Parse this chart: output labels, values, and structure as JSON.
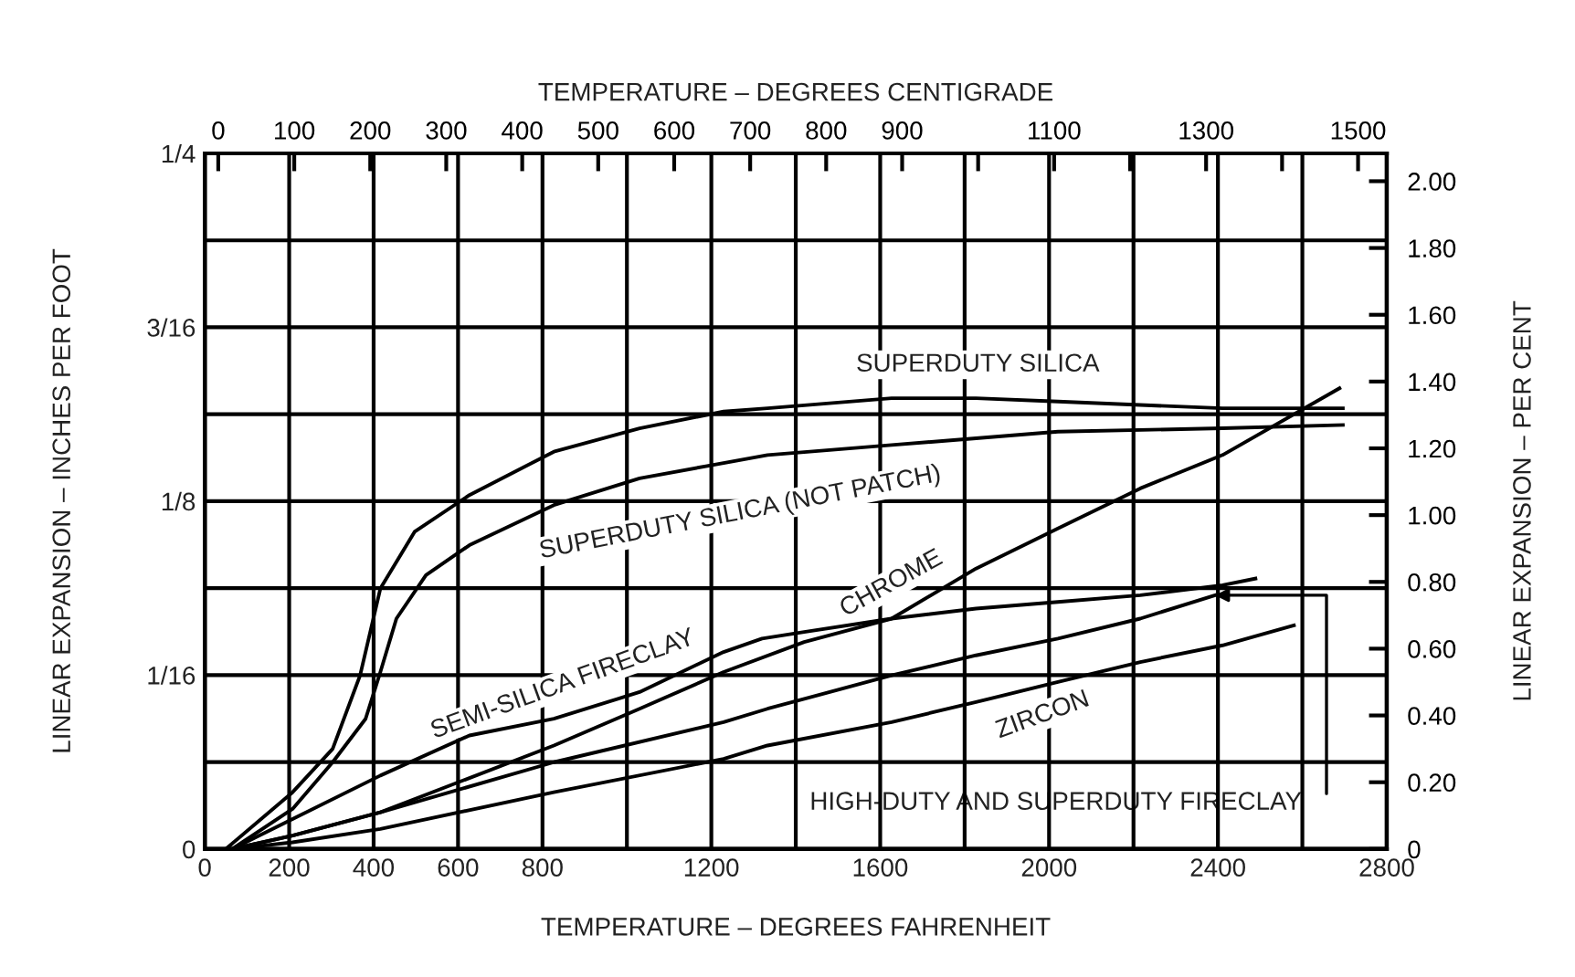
{
  "chart_data": {
    "type": "line",
    "xlabel": "TEMPERATURE – DEGREES FAHRENHEIT",
    "x2label": "TEMPERATURE – DEGREES CENTIGRADE",
    "ylabel": "LINEAR EXPANSION – INCHES PER FOOT",
    "y2label": "LINEAR EXPANSION – PER CENT",
    "xlim": [
      0,
      2800
    ],
    "xticks": [
      0,
      200,
      400,
      600,
      800,
      {
        "value": 1000,
        "label": null
      },
      1200,
      {
        "value": 1400,
        "label": null
      },
      1600,
      {
        "value": 1800,
        "label": null
      },
      2000,
      {
        "value": 2200,
        "label": null
      },
      2400,
      {
        "value": 2600,
        "label": null
      },
      2800
    ],
    "x2lim": [
      -17.8,
      1537.8
    ],
    "x2ticks": [
      0,
      100,
      200,
      300,
      400,
      500,
      600,
      700,
      800,
      900,
      {
        "value": 1000,
        "label": null
      },
      1100,
      {
        "value": 1200,
        "label": null
      },
      1300,
      {
        "value": 1400,
        "label": null
      },
      1500
    ],
    "ylim": [
      0,
      0.25
    ],
    "yticks": [
      0,
      {
        "value": 0.03125,
        "label": null
      },
      {
        "value": 0.0625,
        "label": "1/16"
      },
      {
        "value": 0.09375,
        "label": null
      },
      {
        "value": 0.125,
        "label": "1/8"
      },
      {
        "value": 0.15625,
        "label": null
      },
      {
        "value": 0.1875,
        "label": "3/16"
      },
      {
        "value": 0.21875,
        "label": null
      },
      {
        "value": 0.25,
        "label": "1/4"
      }
    ],
    "y2lim": [
      0,
      2.0833
    ],
    "y2ticks": [
      0,
      {
        "value": 0.2,
        "label": "0.20"
      },
      {
        "value": 0.4,
        "label": "0.40"
      },
      {
        "value": 0.6,
        "label": "0.60"
      },
      {
        "value": 0.8,
        "label": "0.80"
      },
      {
        "value": 1.0,
        "label": "1.00"
      },
      {
        "value": 1.2,
        "label": "1.20"
      },
      {
        "value": 1.4,
        "label": "1.40"
      },
      {
        "value": 1.6,
        "label": "1.60"
      },
      {
        "value": 1.8,
        "label": "1.80"
      },
      {
        "value": 2.0,
        "label": "2.00"
      }
    ],
    "grid": true,
    "marker": "none",
    "line_style": "solid",
    "series": [
      {
        "color": "#000000",
        "axis": "y2",
        "x": [
          50,
          208,
          303,
          368,
          416,
          497,
          627,
          827,
          1030,
          1229,
          1333,
          1627,
          1827,
          2021,
          2411,
          2696
        ],
        "values": [
          0,
          0.17,
          0.3,
          0.52,
          0.78,
          0.95,
          1.06,
          1.19,
          1.26,
          1.31,
          1.32,
          1.35,
          1.35,
          1.34,
          1.32,
          1.32
        ]
      },
      {
        "color": "#000000",
        "axis": "y2",
        "x": [
          65,
          208,
          303,
          381,
          416,
          454,
          524,
          627,
          827,
          1030,
          1333,
          1627,
          1827,
          2021,
          2411,
          2696
        ],
        "values": [
          0,
          0.12,
          0.26,
          0.39,
          0.53,
          0.69,
          0.82,
          0.91,
          1.03,
          1.11,
          1.18,
          1.21,
          1.23,
          1.25,
          1.26,
          1.27
        ]
      },
      {
        "color": "#000000",
        "axis": "y2",
        "x": [
          65,
          208,
          416,
          627,
          827,
          1030,
          1229,
          1320,
          1420,
          1627,
          1827,
          2021,
          2216,
          2411,
          2489
        ],
        "values": [
          0,
          0.09,
          0.22,
          0.34,
          0.39,
          0.47,
          0.59,
          0.63,
          0.65,
          0.69,
          0.72,
          0.74,
          0.76,
          0.79,
          0.81
        ]
      },
      {
        "color": "#000000",
        "axis": "y2",
        "x": [
          65,
          208,
          416,
          827,
          1030,
          1229,
          1420,
          1627,
          1827,
          2021,
          2216,
          2411,
          2688
        ],
        "values": [
          0,
          0.04,
          0.11,
          0.31,
          0.42,
          0.53,
          0.62,
          0.69,
          0.84,
          0.96,
          1.08,
          1.18,
          1.38
        ]
      },
      {
        "color": "#000000",
        "axis": "y2",
        "x": [
          65,
          208,
          416,
          827,
          1229,
          1333,
          1627,
          1827,
          2021,
          2216,
          2393
        ],
        "values": [
          0,
          0.04,
          0.11,
          0.26,
          0.38,
          0.42,
          0.52,
          0.58,
          0.63,
          0.69,
          0.76
        ]
      },
      {
        "color": "#000000",
        "axis": "y2",
        "x": [
          65,
          208,
          416,
          827,
          1229,
          1333,
          1627,
          1827,
          2021,
          2216,
          2411,
          2580
        ],
        "values": [
          0,
          0.02,
          0.06,
          0.17,
          0.27,
          0.31,
          0.38,
          0.44,
          0.5,
          0.56,
          0.61,
          0.67
        ]
      }
    ],
    "annotations": [
      "SUPERDUTY SILICA",
      "SUPERDUTY SILICA (NOT PATCH)",
      "SEMI-SILICA FIRECLAY",
      "CHROME",
      "ZIRCON",
      {
        "text": "HIGH-DUTY AND SUPERDUTY FIRECLAY",
        "x": 2393,
        "y": 0.0912
      }
    ]
  }
}
